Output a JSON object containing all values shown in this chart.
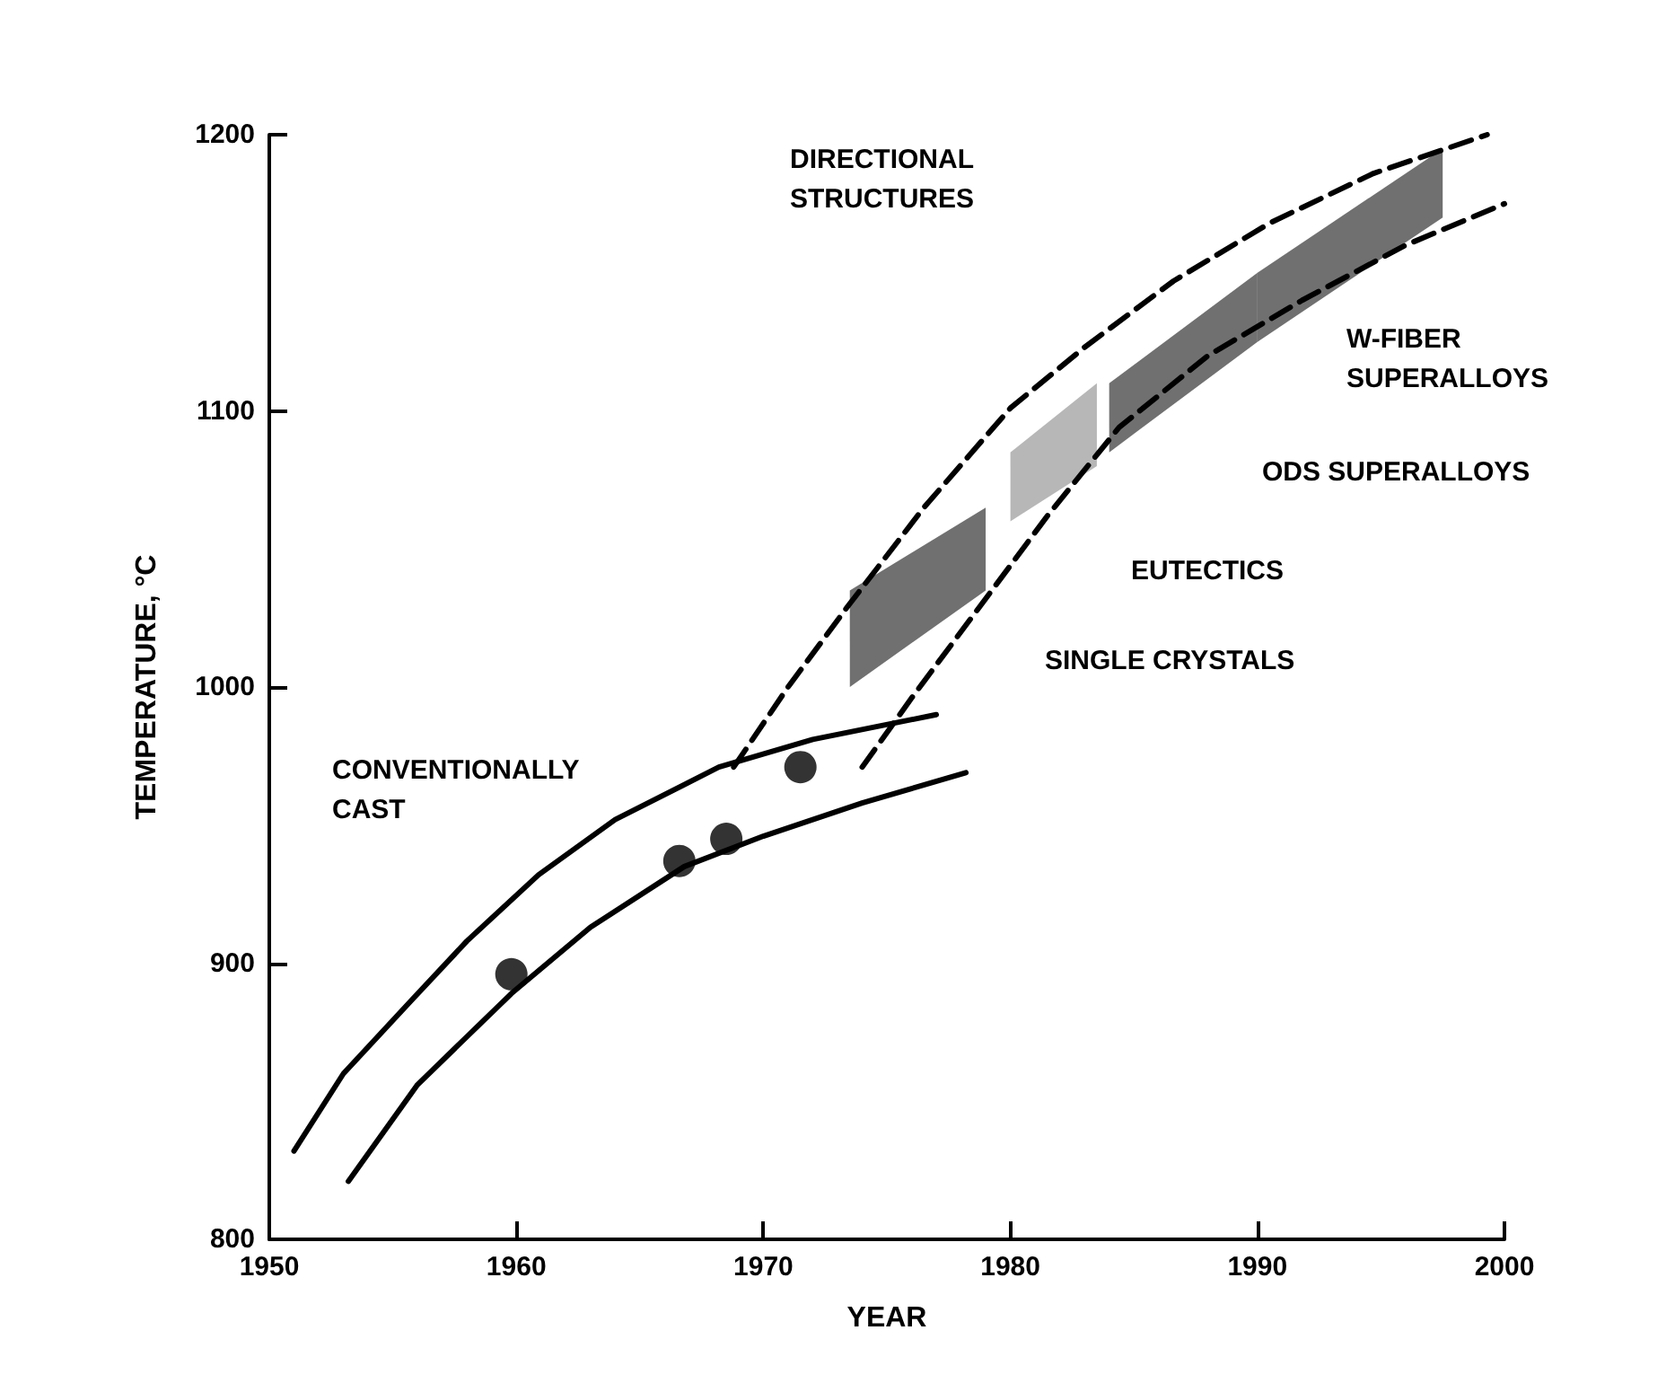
{
  "chart_data": {
    "type": "line",
    "xlabel": "YEAR",
    "ylabel": "TEMPERATURE, °C",
    "xlim": [
      1950,
      2000
    ],
    "xticks": [
      1950,
      1960,
      1970,
      1980,
      1990,
      2000
    ],
    "ylim": [
      800,
      1200
    ],
    "yticks": [
      800,
      900,
      1000,
      1100,
      1200
    ],
    "grid": false,
    "series": [
      {
        "color": "#000000",
        "line_style": "solid",
        "marker": "none",
        "x": [
          1951,
          1953,
          1955.7,
          1958,
          1960.9,
          1964,
          1968.2,
          1972,
          1977
        ],
        "values": [
          832,
          860,
          886,
          908,
          932,
          952,
          971,
          981,
          990
        ]
      },
      {
        "color": "#000000",
        "line_style": "solid",
        "marker": "none",
        "x": [
          1953.2,
          1956,
          1959.8,
          1963,
          1966.8,
          1970,
          1974,
          1978.2
        ],
        "values": [
          821,
          856,
          889,
          913,
          935,
          946,
          958,
          969
        ]
      },
      {
        "color": "#000000",
        "line_style": "dashed",
        "marker": "none",
        "x": [
          1968.8,
          1971,
          1973.4,
          1976.5,
          1980,
          1983,
          1986.6,
          1990.5,
          1994.7,
          1999.3
        ],
        "values": [
          971,
          1000,
          1029,
          1065,
          1101,
          1123,
          1147,
          1168,
          1186,
          1200
        ]
      },
      {
        "color": "#000000",
        "line_style": "dashed",
        "marker": "none",
        "x": [
          1974,
          1976,
          1978.5,
          1981.5,
          1984.4,
          1988,
          1991.8,
          1996,
          2000
        ],
        "values": [
          971,
          996,
          1026,
          1062,
          1094,
          1120,
          1140,
          1160,
          1175
        ]
      },
      {
        "type": "area",
        "color": "#333333",
        "x": [
          1973.5,
          1979
        ],
        "values": [
          null,
          null
        ],
        "lower": [
          1000,
          1035
        ],
        "upper": [
          1035,
          1065
        ]
      },
      {
        "type": "area",
        "color": "#999999",
        "x": [
          1980,
          1983.5
        ],
        "values": [
          null,
          null
        ],
        "lower": [
          1060,
          1080
        ],
        "upper": [
          1085,
          1110
        ]
      },
      {
        "type": "area",
        "color": "#333333",
        "x": [
          1984,
          1990
        ],
        "values": [
          null,
          null
        ],
        "lower": [
          1085,
          1125
        ],
        "upper": [
          1110,
          1150
        ]
      },
      {
        "type": "area",
        "color": "#333333",
        "x": [
          1990,
          1997.5
        ],
        "values": [
          null,
          null
        ],
        "lower": [
          1125,
          1170
        ],
        "upper": [
          1150,
          1195
        ]
      },
      {
        "type": "scatter",
        "color": "#000000",
        "marker": "circle",
        "x": [
          1959.8,
          1966.6,
          1968.5,
          1971.5
        ],
        "values": [
          896,
          937,
          945,
          971
        ]
      }
    ],
    "annotations": [
      "DIRECTIONAL\nSTRUCTURES",
      "CONVENTIONALLY\nCAST",
      "W-FIBER\nSUPERALLOYS",
      "ODS SUPERALLOYS",
      "EUTECTICS",
      "SINGLE CRYSTALS"
    ]
  }
}
